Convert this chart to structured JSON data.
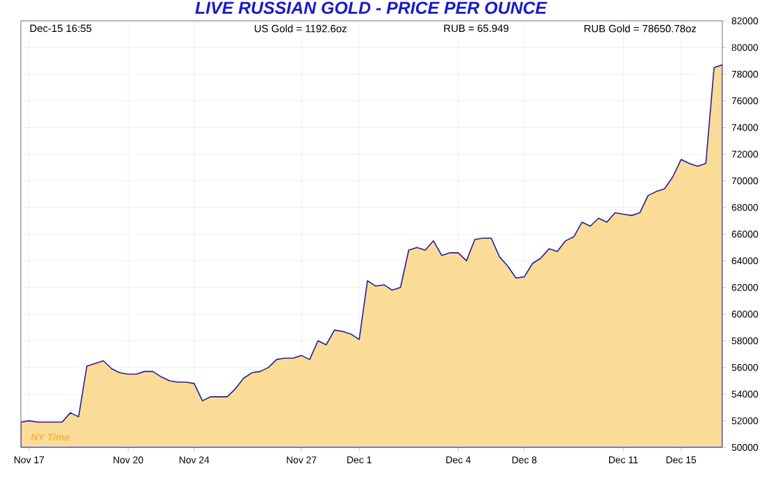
{
  "chart_data": {
    "type": "area",
    "title": "LIVE RUSSIAN GOLD - PRICE PER OUNCE",
    "annotations": [
      "Dec-15  16:55",
      "US Gold = 1192.6oz",
      "RUB = 65.949",
      "RUB Gold = 78650.78oz",
      "NY Time"
    ],
    "categories": [
      null,
      "Nov 17",
      null,
      null,
      null,
      null,
      null,
      null,
      null,
      null,
      null,
      null,
      null,
      "Nov 20",
      null,
      null,
      null,
      null,
      null,
      null,
      null,
      "Nov 24",
      null,
      null,
      null,
      null,
      null,
      null,
      null,
      null,
      null,
      null,
      null,
      null,
      "Nov 27",
      null,
      null,
      null,
      null,
      null,
      null,
      "Dec 1",
      null,
      null,
      null,
      null,
      null,
      null,
      null,
      null,
      null,
      null,
      null,
      "Dec 4",
      null,
      null,
      null,
      null,
      null,
      null,
      null,
      "Dec 8",
      null,
      null,
      null,
      null,
      null,
      null,
      null,
      null,
      null,
      null,
      null,
      "Dec 11",
      null,
      null,
      null,
      null,
      null,
      null,
      "Dec 15",
      null,
      null,
      null,
      null,
      null
    ],
    "values": [
      51900,
      52000,
      51900,
      51900,
      51900,
      51900,
      52600,
      52300,
      56100,
      56300,
      56500,
      55900,
      55600,
      55500,
      55500,
      55700,
      55700,
      55300,
      55000,
      54900,
      54900,
      54800,
      53500,
      53800,
      53800,
      53800,
      54400,
      55200,
      55600,
      55700,
      56000,
      56600,
      56700,
      56700,
      56900,
      56600,
      58000,
      57700,
      58800,
      58700,
      58500,
      58100,
      62500,
      62100,
      62200,
      61800,
      62000,
      64800,
      65000,
      64800,
      65500,
      64400,
      64600,
      64600,
      64000,
      65600,
      65700,
      65700,
      64300,
      63600,
      62700,
      62800,
      63800,
      64200,
      64900,
      64700,
      65500,
      65800,
      66900,
      66600,
      67200,
      66900,
      67600,
      67500,
      67400,
      67600,
      68900,
      69200,
      69400,
      70300,
      71600,
      71300,
      71100,
      71300,
      78500,
      78700
    ],
    "color": "#1c1cb4",
    "ylim": [
      50000,
      82000
    ],
    "yticks": [
      50000,
      52000,
      54000,
      56000,
      58000,
      60000,
      62000,
      64000,
      66000,
      68000,
      70000,
      72000,
      74000,
      76000,
      78000,
      80000,
      82000
    ],
    "grid": true
  }
}
